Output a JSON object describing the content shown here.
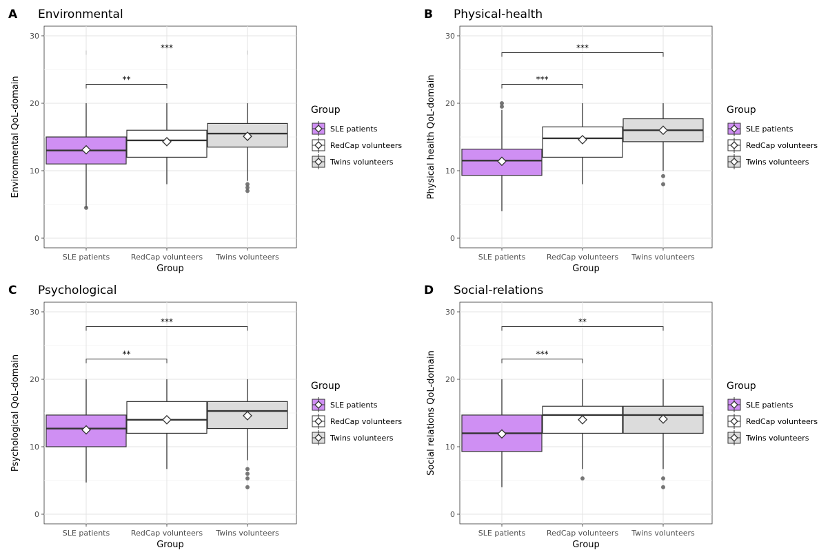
{
  "figure": {
    "legend_title": "Group",
    "groups": [
      "SLE patients",
      "RedCap volunteers",
      "Twins volunteers"
    ],
    "colors": {
      "SLE patients": "#cf8ff3",
      "RedCap volunteers": "#ffffff",
      "Twins volunteers": "#dcdcdc"
    }
  },
  "chart_data": [
    {
      "type": "box",
      "panel": "A",
      "title": "Environmental",
      "xlabel": "Group",
      "ylabel": "Environmental QoL-domain",
      "ylim": [
        0,
        30
      ],
      "yticks": [
        0,
        10,
        20,
        30
      ],
      "categories": [
        "SLE patients",
        "RedCap volunteers",
        "Twins volunteers"
      ],
      "boxes": [
        {
          "whisker_low": 4.5,
          "q1": 11,
          "median": 13,
          "q3": 15,
          "whisker_high": 20,
          "mean": 13.1,
          "outliers": [
            4.5
          ]
        },
        {
          "whisker_low": 8,
          "q1": 12,
          "median": 14.5,
          "q3": 16,
          "whisker_high": 20,
          "mean": 14.3,
          "outliers": []
        },
        {
          "whisker_low": 8.5,
          "q1": 13.5,
          "median": 15.5,
          "q3": 17,
          "whisker_high": 20,
          "mean": 15.1,
          "outliers": [
            8,
            7.5,
            7
          ]
        }
      ],
      "significance": [
        {
          "from": 0,
          "to": 1,
          "label": "**",
          "y": 22.8
        },
        {
          "from": 0,
          "to": 2,
          "label": "***",
          "y": 27.5,
          "bracket": false
        }
      ]
    },
    {
      "type": "box",
      "panel": "B",
      "title": "Physical-health",
      "xlabel": "Group",
      "ylabel": "Physical health QoL-domain",
      "ylim": [
        0,
        30
      ],
      "yticks": [
        0,
        10,
        20,
        30
      ],
      "categories": [
        "SLE patients",
        "RedCap volunteers",
        "Twins volunteers"
      ],
      "boxes": [
        {
          "whisker_low": 4,
          "q1": 9.3,
          "median": 11.5,
          "q3": 13.2,
          "whisker_high": 19,
          "mean": 11.4,
          "outliers": [
            19.5,
            20
          ]
        },
        {
          "whisker_low": 8,
          "q1": 12,
          "median": 14.8,
          "q3": 16.5,
          "whisker_high": 20,
          "mean": 14.6,
          "outliers": []
        },
        {
          "whisker_low": 10,
          "q1": 14.3,
          "median": 16,
          "q3": 17.7,
          "whisker_high": 20,
          "mean": 16,
          "outliers": [
            9.2,
            8
          ]
        }
      ],
      "significance": [
        {
          "from": 0,
          "to": 1,
          "label": "***",
          "y": 22.8
        },
        {
          "from": 0,
          "to": 2,
          "label": "***",
          "y": 27.5
        }
      ]
    },
    {
      "type": "box",
      "panel": "C",
      "title": "Psychological",
      "xlabel": "Group",
      "ylabel": "Psychological QoL-domain",
      "ylim": [
        0,
        30
      ],
      "yticks": [
        0,
        10,
        20,
        30
      ],
      "categories": [
        "SLE patients",
        "RedCap volunteers",
        "Twins volunteers"
      ],
      "boxes": [
        {
          "whisker_low": 4.7,
          "q1": 10,
          "median": 12.7,
          "q3": 14.7,
          "whisker_high": 20,
          "mean": 12.5,
          "outliers": []
        },
        {
          "whisker_low": 6.7,
          "q1": 12,
          "median": 14,
          "q3": 16.7,
          "whisker_high": 20,
          "mean": 14,
          "outliers": []
        },
        {
          "whisker_low": 8,
          "q1": 12.7,
          "median": 15.3,
          "q3": 16.7,
          "whisker_high": 20,
          "mean": 14.6,
          "outliers": [
            6.7,
            6,
            5.3,
            4
          ]
        }
      ],
      "significance": [
        {
          "from": 0,
          "to": 1,
          "label": "**",
          "y": 23
        },
        {
          "from": 0,
          "to": 2,
          "label": "***",
          "y": 27.8
        }
      ]
    },
    {
      "type": "box",
      "panel": "D",
      "title": "Social-relations",
      "xlabel": "Group",
      "ylabel": "Social relations QoL-domain",
      "ylim": [
        0,
        30
      ],
      "yticks": [
        0,
        10,
        20,
        30
      ],
      "categories": [
        "SLE patients",
        "RedCap volunteers",
        "Twins volunteers"
      ],
      "boxes": [
        {
          "whisker_low": 4,
          "q1": 9.3,
          "median": 12,
          "q3": 14.7,
          "whisker_high": 20,
          "mean": 11.9,
          "outliers": []
        },
        {
          "whisker_low": 6.7,
          "q1": 12,
          "median": 14.7,
          "q3": 16,
          "whisker_high": 20,
          "mean": 14,
          "outliers": [
            5.3
          ]
        },
        {
          "whisker_low": 6.7,
          "q1": 12,
          "median": 14.7,
          "q3": 16,
          "whisker_high": 20,
          "mean": 14.1,
          "outliers": [
            5.3,
            4
          ]
        }
      ],
      "significance": [
        {
          "from": 0,
          "to": 1,
          "label": "***",
          "y": 23
        },
        {
          "from": 0,
          "to": 2,
          "label": "**",
          "y": 27.8
        }
      ]
    }
  ]
}
